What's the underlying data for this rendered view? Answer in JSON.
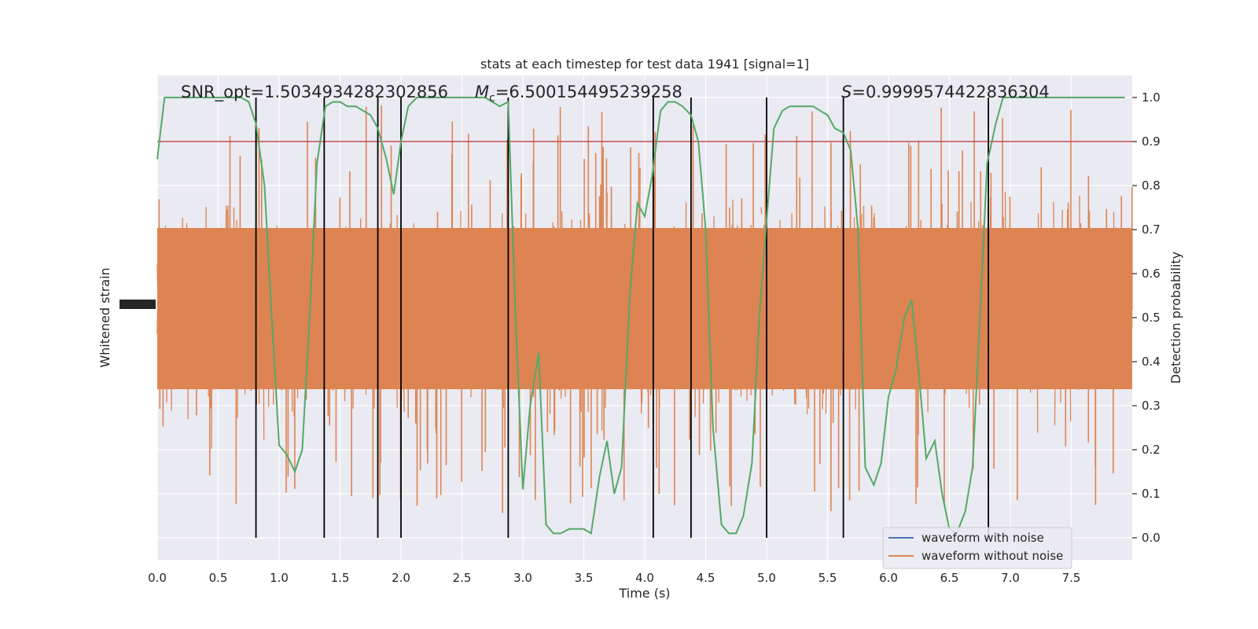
{
  "chart_data": {
    "type": "line",
    "title": "stats at each timestep for test data 1941 [signal=1]",
    "xlabel": "Time (s)",
    "ylabel_left": "Whitened strain",
    "ylabel_right": "Detection probability",
    "xlim": [
      0.0,
      8.0
    ],
    "ylim_right": [
      -0.05,
      1.05
    ],
    "x_ticks": [
      "0.0",
      "0.5",
      "1.0",
      "1.5",
      "2.0",
      "2.5",
      "3.0",
      "3.5",
      "4.0",
      "4.5",
      "5.0",
      "5.5",
      "6.0",
      "6.5",
      "7.0",
      "7.5"
    ],
    "y_ticks_right": [
      "0.0",
      "0.1",
      "0.2",
      "0.3",
      "0.4",
      "0.5",
      "0.6",
      "0.7",
      "0.8",
      "0.9",
      "1.0"
    ],
    "annotations": {
      "snr": "SNR_opt=1.5034934282302856",
      "mc_symbol": "M",
      "mc_sub": "c",
      "mc_value": "=6.500154495239258",
      "s_symbol": "S",
      "s_value": "=0.9999574422836304"
    },
    "threshold": 0.9,
    "vertical_lines_x": [
      0.81,
      1.37,
      1.81,
      2.0,
      2.88,
      4.07,
      4.38,
      5.0,
      5.63,
      6.82
    ],
    "legend": {
      "placement": "lower right",
      "entries": [
        {
          "label": "waveform with noise",
          "color": "#4c72b0"
        },
        {
          "label": "waveform without noise",
          "color": "#dd8452"
        }
      ]
    },
    "series": [
      {
        "color": "#55a868",
        "x": [
          0.0,
          0.06,
          0.13,
          0.19,
          0.25,
          0.31,
          0.38,
          0.44,
          0.5,
          0.56,
          0.63,
          0.69,
          0.75,
          0.81,
          0.88,
          0.94,
          1.0,
          1.06,
          1.13,
          1.19,
          1.25,
          1.31,
          1.38,
          1.44,
          1.5,
          1.56,
          1.63,
          1.69,
          1.75,
          1.81,
          1.88,
          1.94,
          2.0,
          2.06,
          2.13,
          2.19,
          2.25,
          2.31,
          2.38,
          2.44,
          2.5,
          2.56,
          2.63,
          2.69,
          2.75,
          2.81,
          2.88,
          2.94,
          3.0,
          3.06,
          3.13,
          3.19,
          3.25,
          3.31,
          3.38,
          3.44,
          3.5,
          3.56,
          3.63,
          3.69,
          3.75,
          3.81,
          3.88,
          3.94,
          4.0,
          4.06,
          4.13,
          4.19,
          4.25,
          4.31,
          4.38,
          4.44,
          4.5,
          4.56,
          4.63,
          4.69,
          4.75,
          4.81,
          4.88,
          4.94,
          5.0,
          5.06,
          5.13,
          5.19,
          5.25,
          5.31,
          5.38,
          5.44,
          5.5,
          5.56,
          5.63,
          5.69,
          5.75,
          5.81,
          5.88,
          5.94,
          6.0,
          6.06,
          6.13,
          6.19,
          6.25,
          6.31,
          6.38,
          6.44,
          6.5,
          6.56,
          6.63,
          6.69,
          6.75,
          6.81,
          6.88,
          6.94,
          7.0,
          7.06,
          7.13,
          7.19,
          7.25,
          7.31,
          7.38,
          7.44,
          7.5,
          7.56,
          7.63,
          7.69,
          7.75,
          7.81,
          7.88,
          7.94
        ],
        "values": [
          0.86,
          1.0,
          1.0,
          1.0,
          1.0,
          1.0,
          1.0,
          1.0,
          1.0,
          1.0,
          1.0,
          1.0,
          0.99,
          0.94,
          0.8,
          0.5,
          0.21,
          0.19,
          0.15,
          0.2,
          0.5,
          0.85,
          0.98,
          0.99,
          0.99,
          0.98,
          0.98,
          0.97,
          0.96,
          0.93,
          0.86,
          0.78,
          0.9,
          0.98,
          1.0,
          1.0,
          1.0,
          1.0,
          1.0,
          1.0,
          1.0,
          1.0,
          1.0,
          1.0,
          0.99,
          0.98,
          0.99,
          0.5,
          0.11,
          0.3,
          0.42,
          0.03,
          0.01,
          0.01,
          0.02,
          0.02,
          0.02,
          0.01,
          0.14,
          0.22,
          0.1,
          0.16,
          0.56,
          0.76,
          0.73,
          0.82,
          0.97,
          0.99,
          0.99,
          0.98,
          0.96,
          0.9,
          0.7,
          0.25,
          0.03,
          0.01,
          0.01,
          0.05,
          0.17,
          0.5,
          0.72,
          0.93,
          0.97,
          0.98,
          0.98,
          0.98,
          0.98,
          0.97,
          0.96,
          0.93,
          0.92,
          0.88,
          0.7,
          0.16,
          0.12,
          0.17,
          0.32,
          0.38,
          0.5,
          0.54,
          0.37,
          0.18,
          0.22,
          0.1,
          0.02,
          0.01,
          0.06,
          0.16,
          0.5,
          0.85,
          0.94,
          1.0,
          1.0,
          1.0,
          1.0,
          1.0,
          1.0,
          1.0,
          1.0,
          1.0,
          1.0,
          1.0,
          1.0,
          1.0,
          1.0,
          1.0,
          1.0,
          1.0
        ]
      }
    ]
  }
}
